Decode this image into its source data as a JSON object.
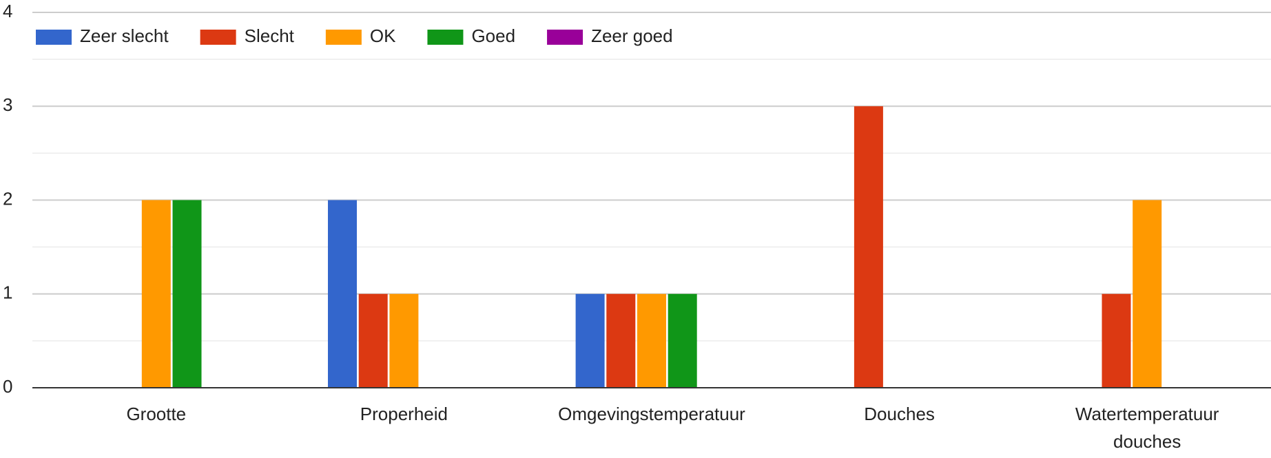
{
  "chart_data": {
    "type": "bar",
    "categories": [
      "Grootte",
      "Properheid",
      "Omgevingstemperatuur",
      "Douches",
      "Watertemperatuur douches"
    ],
    "series": [
      {
        "name": "Zeer slecht",
        "color": "#3366cc",
        "values": [
          0,
          2,
          1,
          0,
          0
        ]
      },
      {
        "name": "Slecht",
        "color": "#dc3912",
        "values": [
          0,
          1,
          1,
          3,
          1
        ]
      },
      {
        "name": "OK",
        "color": "#ff9900",
        "values": [
          2,
          1,
          1,
          0,
          2
        ]
      },
      {
        "name": "Goed",
        "color": "#109618",
        "values": [
          2,
          0,
          1,
          0,
          0
        ]
      },
      {
        "name": "Zeer goed",
        "color": "#990099",
        "values": [
          0,
          0,
          0,
          0,
          0
        ]
      }
    ],
    "ylim": [
      0,
      4
    ],
    "yticks": [
      0,
      1,
      2,
      3,
      4
    ],
    "grid": true,
    "legend": "top-left"
  }
}
